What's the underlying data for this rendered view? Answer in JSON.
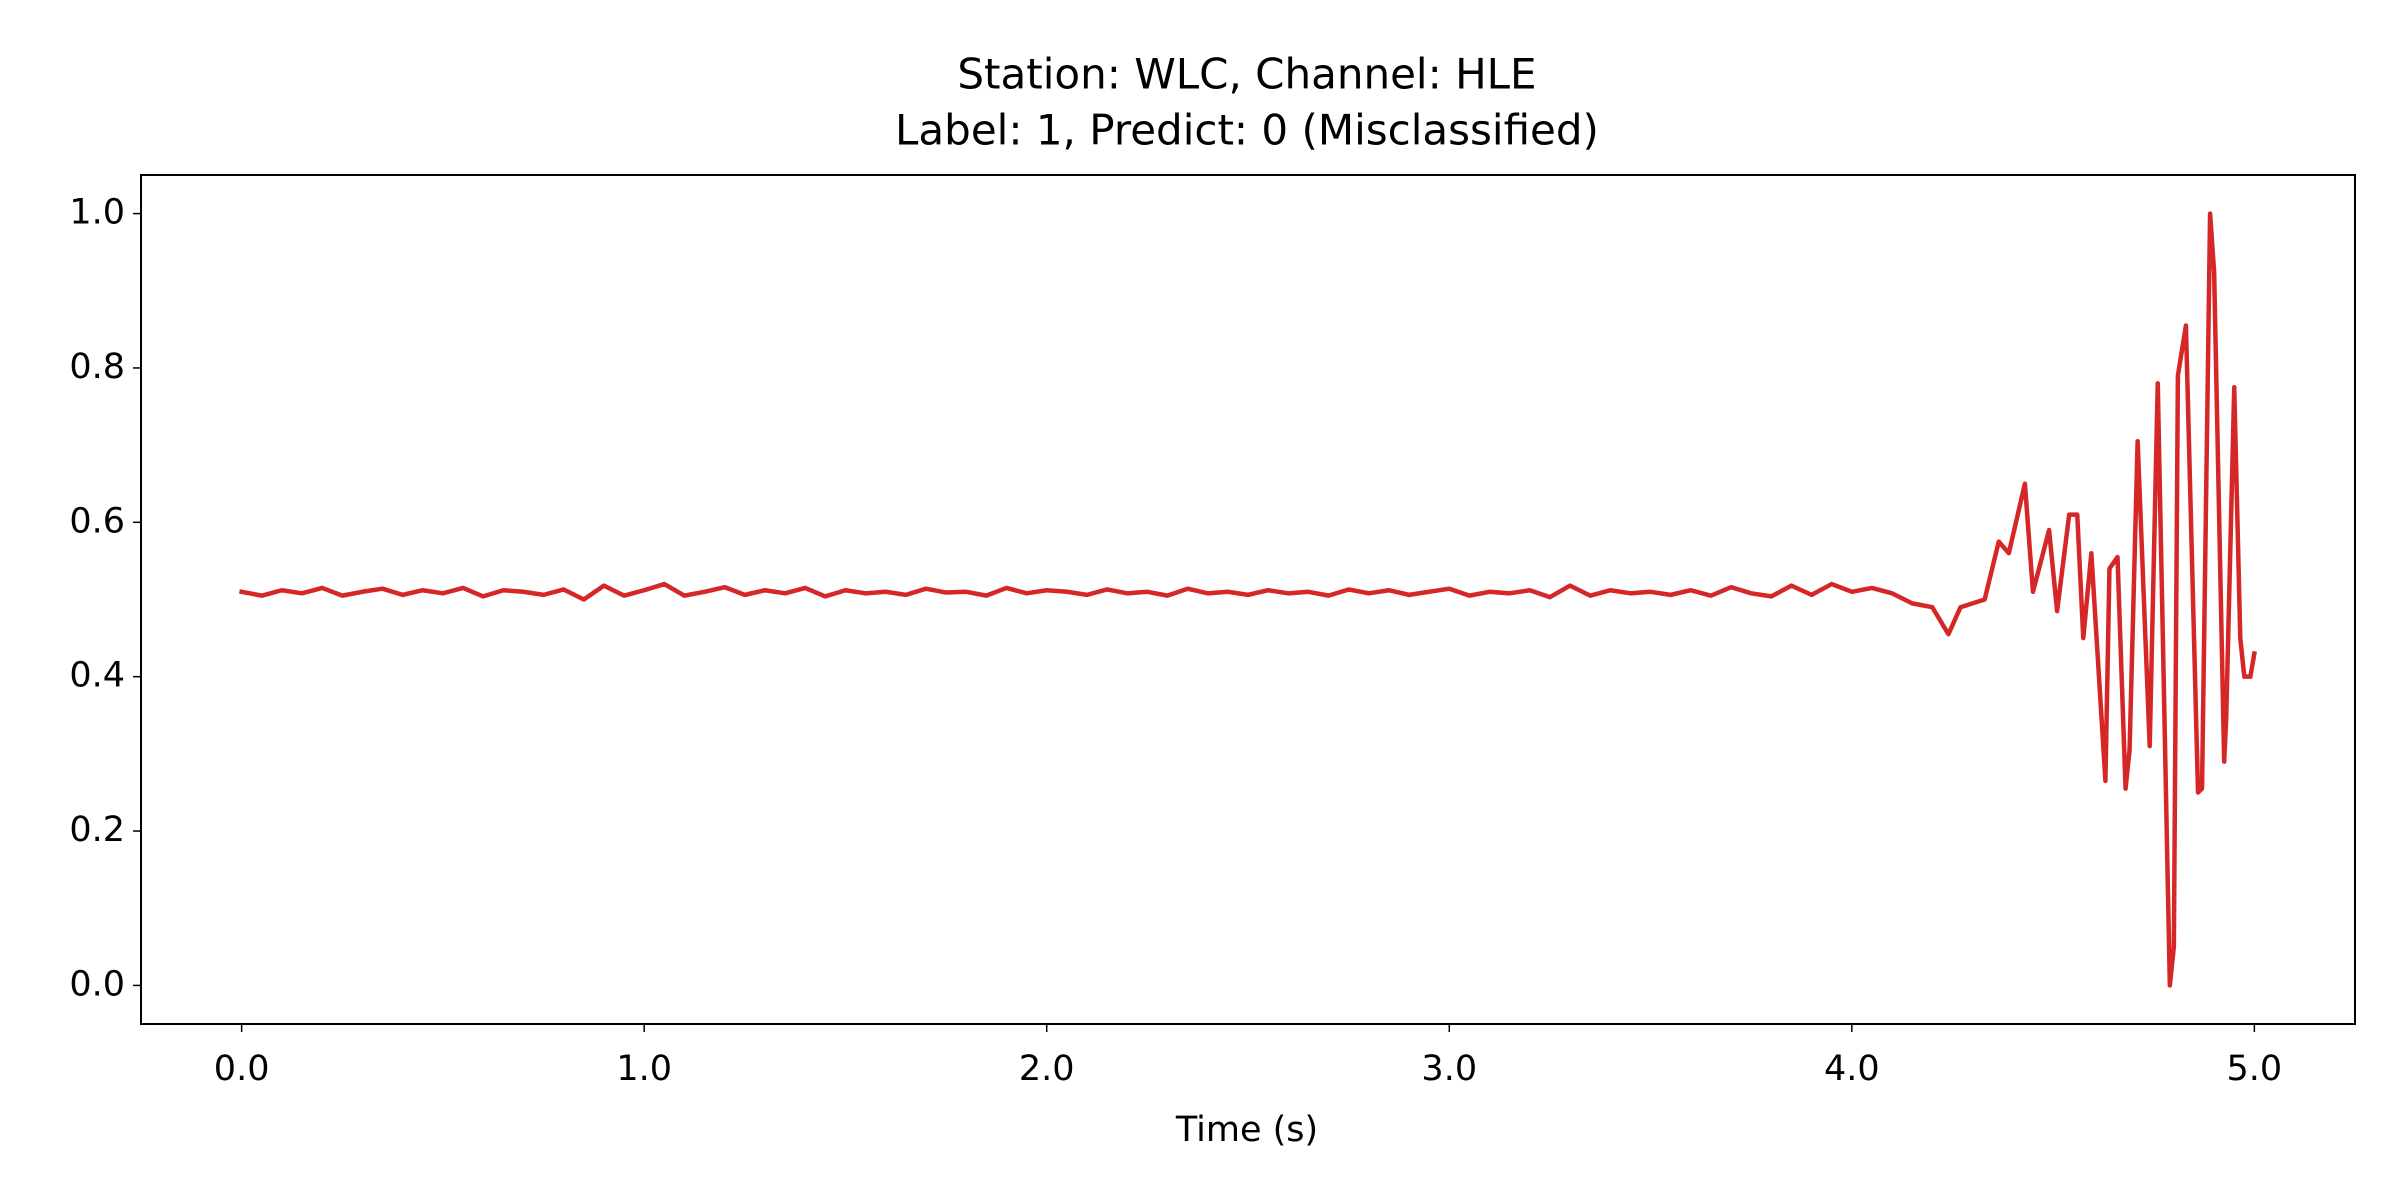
{
  "chart_data": {
    "type": "line",
    "title": "Station: WLC, Channel: HLE",
    "subtitle": "Label: 1, Predict: 0 (Misclassified)",
    "x_label": "Time (s)",
    "color": "#d62728",
    "xlim": [
      -0.25,
      5.25
    ],
    "ylim": [
      -0.05,
      1.05
    ],
    "xticks": [
      {
        "value": 0,
        "label": "0.0"
      },
      {
        "value": 1,
        "label": "1.0"
      },
      {
        "value": 2,
        "label": "2.0"
      },
      {
        "value": 3,
        "label": "3.0"
      },
      {
        "value": 4,
        "label": "4.0"
      },
      {
        "value": 5,
        "label": "5.0"
      }
    ],
    "yticks": [
      {
        "value": 0,
        "label": "0.0"
      },
      0.2,
      0.4,
      0.6,
      0.8,
      {
        "value": 1,
        "label": "1.0"
      }
    ],
    "x": [
      0,
      0.05,
      0.1,
      0.15,
      0.2,
      0.25,
      0.3,
      0.35,
      0.4,
      0.45,
      0.5,
      0.55,
      0.6,
      0.65,
      0.7,
      0.75,
      0.8,
      0.85,
      0.9,
      0.95,
      1.0,
      1.05,
      1.1,
      1.15,
      1.2,
      1.25,
      1.3,
      1.35,
      1.4,
      1.45,
      1.5,
      1.55,
      1.6,
      1.65,
      1.7,
      1.75,
      1.8,
      1.85,
      1.9,
      1.95,
      2.0,
      2.05,
      2.1,
      2.15,
      2.2,
      2.25,
      2.3,
      2.35,
      2.4,
      2.45,
      2.5,
      2.55,
      2.6,
      2.65,
      2.7,
      2.75,
      2.8,
      2.85,
      2.9,
      2.95,
      3.0,
      3.05,
      3.1,
      3.15,
      3.2,
      3.25,
      3.3,
      3.35,
      3.4,
      3.45,
      3.5,
      3.55,
      3.6,
      3.65,
      3.7,
      3.75,
      3.8,
      3.85,
      3.9,
      3.95,
      4.0,
      4.05,
      4.1,
      4.15,
      4.2,
      4.24,
      4.27,
      4.3,
      4.33,
      4.365,
      4.39,
      4.43,
      4.45,
      4.47,
      4.49,
      4.51,
      4.54,
      4.56,
      4.575,
      4.595,
      4.63,
      4.64,
      4.66,
      4.68,
      4.69,
      4.71,
      4.74,
      4.76,
      4.79,
      4.8,
      4.81,
      4.83,
      4.86,
      4.87,
      4.89,
      4.9,
      4.925,
      4.93,
      4.95,
      4.965,
      4.975,
      4.99,
      5.0
    ],
    "values": [
      0.51,
      0.505,
      0.512,
      0.508,
      0.515,
      0.505,
      0.51,
      0.514,
      0.506,
      0.512,
      0.508,
      0.515,
      0.504,
      0.512,
      0.51,
      0.506,
      0.513,
      0.5,
      0.518,
      0.505,
      0.512,
      0.52,
      0.505,
      0.51,
      0.516,
      0.506,
      0.512,
      0.508,
      0.515,
      0.504,
      0.512,
      0.508,
      0.51,
      0.506,
      0.514,
      0.509,
      0.51,
      0.505,
      0.515,
      0.508,
      0.512,
      0.51,
      0.506,
      0.513,
      0.508,
      0.51,
      0.505,
      0.514,
      0.508,
      0.51,
      0.506,
      0.512,
      0.508,
      0.51,
      0.505,
      0.513,
      0.508,
      0.512,
      0.506,
      0.51,
      0.514,
      0.505,
      0.51,
      0.508,
      0.512,
      0.503,
      0.518,
      0.505,
      0.512,
      0.508,
      0.51,
      0.506,
      0.512,
      0.505,
      0.516,
      0.508,
      0.504,
      0.518,
      0.506,
      0.52,
      0.51,
      0.515,
      0.508,
      0.495,
      0.49,
      0.455,
      0.49,
      0.495,
      0.5,
      0.575,
      0.56,
      0.65,
      0.51,
      0.55,
      0.59,
      0.485,
      0.61,
      0.61,
      0.45,
      0.56,
      0.265,
      0.54,
      0.555,
      0.255,
      0.305,
      0.705,
      0.31,
      0.78,
      0.0,
      0.05,
      0.79,
      0.855,
      0.25,
      0.255,
      1.0,
      0.925,
      0.29,
      0.345,
      0.775,
      0.45,
      0.4,
      0.4,
      0.43
    ]
  }
}
